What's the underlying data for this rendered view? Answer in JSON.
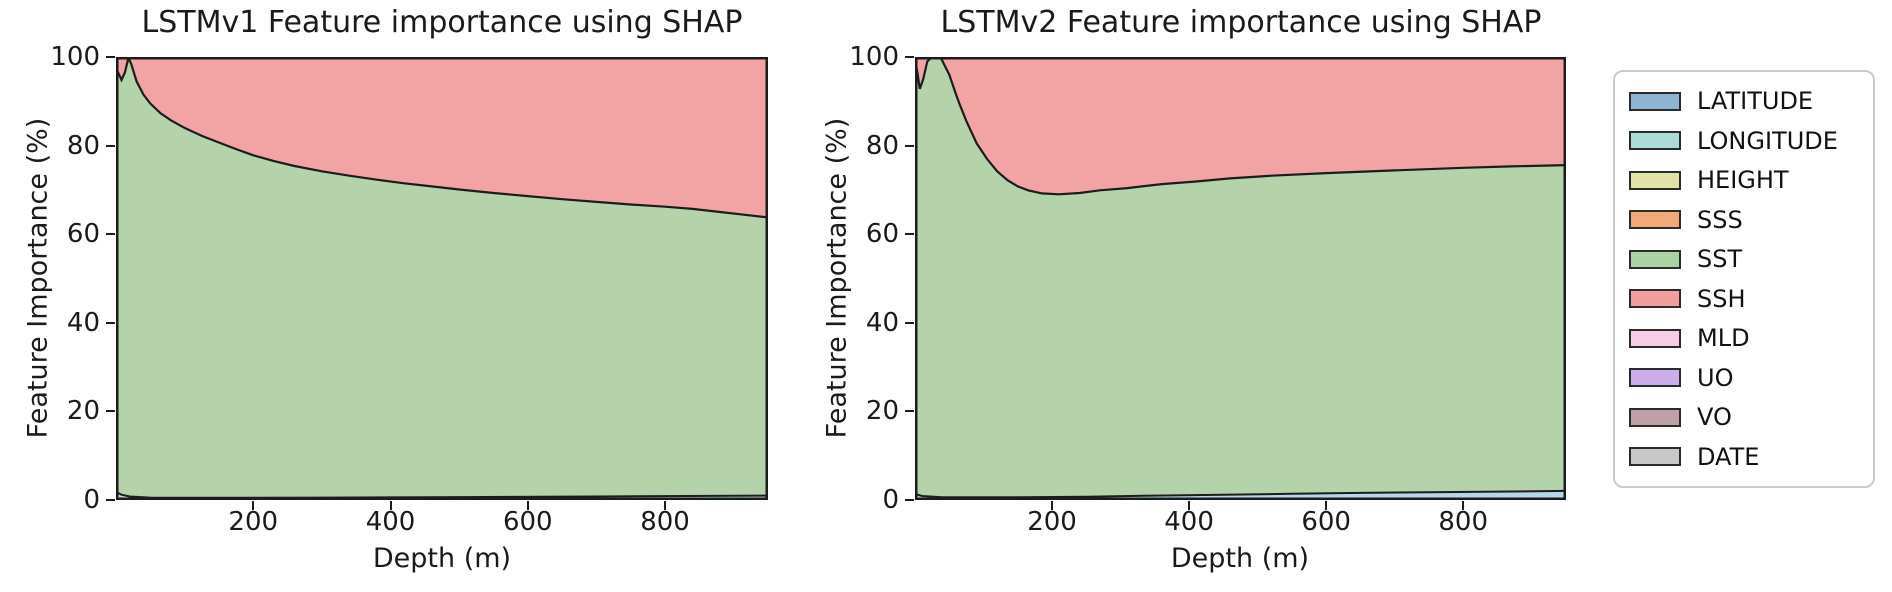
{
  "page": {
    "background": "#ffffff"
  },
  "chart_data": [
    {
      "type": "area",
      "title": "LSTMv1 Feature importance using SHAP",
      "xlabel": "Depth (m)",
      "ylabel": "Feature Importance (%)",
      "xlim": [
        0,
        950
      ],
      "ylim": [
        0,
        100
      ],
      "xticks": [
        200,
        400,
        600,
        800
      ],
      "yticks": [
        0,
        20,
        40,
        60,
        80,
        100
      ],
      "grid": false,
      "legend_position": "outside-right",
      "stack_order": [
        "LATITUDE",
        "LONGITUDE",
        "HEIGHT",
        "SSS",
        "SST",
        "SSH",
        "MLD",
        "UO",
        "VO",
        "DATE"
      ],
      "series": [
        {
          "name": "others_cumulative_top",
          "desc": "cumulative % of LATITUDE+LONGITUDE+HEIGHT+SSS (thin bottom band)",
          "points": [
            [
              0,
              1.8
            ],
            [
              8,
              1.2
            ],
            [
              20,
              0.8
            ],
            [
              50,
              0.55
            ],
            [
              150,
              0.5
            ],
            [
              300,
              0.55
            ],
            [
              500,
              0.65
            ],
            [
              700,
              0.8
            ],
            [
              950,
              1.0
            ]
          ]
        },
        {
          "name": "sst_cumulative_top",
          "desc": "cumulative % through SST (green/red boundary)",
          "points": [
            [
              0,
              97.5
            ],
            [
              4,
              96.2
            ],
            [
              8,
              94.8
            ],
            [
              13,
              96.5
            ],
            [
              18,
              99.8
            ],
            [
              22,
              98.5
            ],
            [
              30,
              94.5
            ],
            [
              40,
              91.5
            ],
            [
              50,
              89.5
            ],
            [
              65,
              87.3
            ],
            [
              80,
              85.7
            ],
            [
              100,
              84.0
            ],
            [
              125,
              82.2
            ],
            [
              150,
              80.7
            ],
            [
              175,
              79.2
            ],
            [
              200,
              77.8
            ],
            [
              230,
              76.5
            ],
            [
              260,
              75.4
            ],
            [
              300,
              74.2
            ],
            [
              340,
              73.2
            ],
            [
              380,
              72.3
            ],
            [
              420,
              71.5
            ],
            [
              460,
              70.8
            ],
            [
              500,
              70.1
            ],
            [
              550,
              69.3
            ],
            [
              600,
              68.6
            ],
            [
              650,
              67.9
            ],
            [
              700,
              67.3
            ],
            [
              750,
              66.7
            ],
            [
              800,
              66.2
            ],
            [
              840,
              65.7
            ],
            [
              880,
              65.0
            ],
            [
              910,
              64.5
            ],
            [
              950,
              63.8
            ]
          ]
        },
        {
          "name": "ssh_cumulative_top",
          "desc": "cumulative % through SSH (top of stack)",
          "points": [
            [
              0,
              100
            ],
            [
              950,
              100
            ]
          ]
        }
      ]
    },
    {
      "type": "area",
      "title": "LSTMv2 Feature importance using SHAP",
      "xlabel": "Depth (m)",
      "ylabel": "Feature Importance (%)",
      "xlim": [
        0,
        950
      ],
      "ylim": [
        0,
        100
      ],
      "xticks": [
        200,
        400,
        600,
        800
      ],
      "yticks": [
        0,
        20,
        40,
        60,
        80,
        100
      ],
      "grid": false,
      "legend_position": "outside-right",
      "stack_order": [
        "LATITUDE",
        "LONGITUDE",
        "HEIGHT",
        "SSS",
        "SST",
        "SSH",
        "MLD",
        "UO",
        "VO",
        "DATE"
      ],
      "series": [
        {
          "name": "others_cumulative_top",
          "desc": "cumulative % of LATITUDE+LONGITUDE+HEIGHT+SSS (thin bottom band, grows with depth)",
          "points": [
            [
              0,
              1.4
            ],
            [
              10,
              0.9
            ],
            [
              40,
              0.6
            ],
            [
              150,
              0.6
            ],
            [
              250,
              0.75
            ],
            [
              350,
              1.0
            ],
            [
              450,
              1.2
            ],
            [
              550,
              1.4
            ],
            [
              650,
              1.6
            ],
            [
              750,
              1.75
            ],
            [
              850,
              1.9
            ],
            [
              950,
              2.05
            ]
          ]
        },
        {
          "name": "sst_cumulative_top",
          "desc": "cumulative % through SST (green/red boundary)",
          "points": [
            [
              0,
              99.8
            ],
            [
              4,
              96.0
            ],
            [
              7,
              92.8
            ],
            [
              12,
              95.0
            ],
            [
              18,
              99.0
            ],
            [
              25,
              100.0
            ],
            [
              37,
              100.0
            ],
            [
              50,
              96.0
            ],
            [
              60,
              91.5
            ],
            [
              66,
              89.0
            ],
            [
              75,
              85.5
            ],
            [
              90,
              80.5
            ],
            [
              105,
              77.0
            ],
            [
              120,
              74.2
            ],
            [
              135,
              72.2
            ],
            [
              150,
              70.8
            ],
            [
              165,
              69.9
            ],
            [
              185,
              69.2
            ],
            [
              210,
              69.0
            ],
            [
              240,
              69.3
            ],
            [
              270,
              69.9
            ],
            [
              310,
              70.4
            ],
            [
              360,
              71.3
            ],
            [
              410,
              71.9
            ],
            [
              460,
              72.6
            ],
            [
              520,
              73.2
            ],
            [
              600,
              73.8
            ],
            [
              700,
              74.4
            ],
            [
              800,
              75.0
            ],
            [
              870,
              75.3
            ],
            [
              950,
              75.6
            ]
          ]
        },
        {
          "name": "ssh_cumulative_top",
          "desc": "cumulative % through SSH (top of stack)",
          "points": [
            [
              0,
              100
            ],
            [
              950,
              100
            ]
          ]
        }
      ]
    }
  ],
  "legend": {
    "items": [
      {
        "label": "LATITUDE",
        "color": "#8fb4d1"
      },
      {
        "label": "LONGITUDE",
        "color": "#abdcd5"
      },
      {
        "label": "HEIGHT",
        "color": "#e1e3a6"
      },
      {
        "label": "SSS",
        "color": "#f2a877"
      },
      {
        "label": "SST",
        "color": "#abd2a2"
      },
      {
        "label": "SSH",
        "color": "#f09e9e"
      },
      {
        "label": "MLD",
        "color": "#f8cdea"
      },
      {
        "label": "UO",
        "color": "#ccaeeb"
      },
      {
        "label": "VO",
        "color": "#bfa0a6"
      },
      {
        "label": "DATE",
        "color": "#c8c8c8"
      }
    ]
  },
  "palette": {
    "sst_fill": "#b4d3ab",
    "ssh_fill": "#f2a4a4",
    "others_fill": "#b5d8e8",
    "edge": "#1c1c1c",
    "text": "#1a1a1a",
    "legend_border": "#cccccc"
  }
}
